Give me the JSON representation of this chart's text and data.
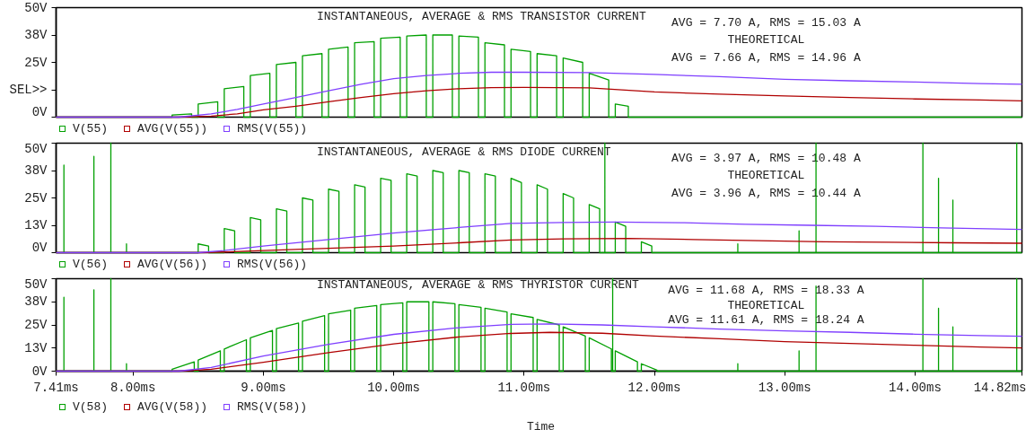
{
  "chart_data": [
    {
      "type": "line",
      "title": "INSTANTANEOUS, AVERAGE & RMS TRANSISTOR CURRENT",
      "annotations": [
        "AVG = 7.70 A, RMS = 15.03 A",
        "THEORETICAL",
        "AVG = 7.66 A, RMS = 14.96 A"
      ],
      "xlim": [
        7.41,
        14.82
      ],
      "ylim": [
        0,
        50
      ],
      "yticks": [
        {
          "value": 0,
          "label": "0V"
        },
        {
          "value": 12.5,
          "label": "SEL>>"
        },
        {
          "value": 25,
          "label": "25V"
        },
        {
          "value": 37.5,
          "label": "38V"
        },
        {
          "value": 50,
          "label": "50V"
        }
      ],
      "tick_labels": "y",
      "legend": "bottom",
      "series": [
        {
          "name": "V(55)",
          "color": "#00a000",
          "x": [
            7.41,
            8.3,
            8.3,
            8.45,
            8.45,
            8.5,
            8.5,
            8.65,
            8.65,
            8.7,
            8.7,
            8.85,
            8.85,
            8.9,
            8.9,
            9.05,
            9.05,
            9.1,
            9.1,
            9.25,
            9.25,
            9.3,
            9.3,
            9.45,
            9.45,
            9.5,
            9.5,
            9.65,
            9.65,
            9.7,
            9.7,
            9.85,
            9.85,
            9.9,
            9.9,
            10.05,
            10.05,
            10.1,
            10.1,
            10.25,
            10.25,
            10.3,
            10.3,
            10.45,
            10.45,
            10.5,
            10.5,
            10.65,
            10.65,
            10.7,
            10.7,
            10.85,
            10.85,
            10.9,
            10.9,
            11.05,
            11.05,
            11.1,
            11.1,
            11.25,
            11.25,
            11.3,
            11.3,
            11.45,
            11.45,
            11.5,
            11.5,
            11.65,
            11.65,
            11.7,
            11.7,
            11.8,
            11.8,
            14.82
          ],
          "values": [
            0,
            0,
            1,
            1.5,
            0,
            0,
            6,
            7,
            0,
            0,
            13,
            14,
            0,
            0,
            19,
            20,
            0,
            0,
            24,
            25,
            0,
            0,
            28,
            29,
            0,
            0,
            31,
            32,
            0,
            0,
            34,
            34.5,
            0,
            0,
            36,
            36.5,
            0,
            0,
            37,
            37.5,
            0,
            0,
            37.5,
            37.5,
            0,
            0,
            37,
            36.5,
            0,
            0,
            34,
            33,
            0,
            0,
            31,
            30,
            0,
            0,
            29,
            28,
            0,
            0,
            27,
            25,
            0,
            0,
            20,
            17,
            0,
            0,
            6,
            5,
            0,
            0
          ]
        },
        {
          "name": "AVG(V(55))",
          "color": "#b00000",
          "x": [
            7.41,
            8.35,
            8.6,
            8.8,
            9.0,
            9.25,
            9.5,
            9.75,
            10.0,
            10.25,
            10.5,
            10.75,
            11.0,
            11.5,
            12.0,
            12.5,
            13.0,
            13.5,
            14.0,
            14.5,
            14.82
          ],
          "values": [
            0,
            0,
            0.5,
            1.5,
            3.3,
            5,
            7,
            9,
            10.7,
            12,
            13,
            13.5,
            13.6,
            13.4,
            11.5,
            10.5,
            9.7,
            9,
            8.3,
            7.8,
            7.4
          ]
        },
        {
          "name": "RMS(V(55))",
          "color": "#7f3fff",
          "x": [
            7.41,
            8.35,
            8.6,
            8.8,
            9.0,
            9.25,
            9.5,
            9.75,
            10.0,
            10.25,
            10.5,
            10.75,
            11.0,
            11.5,
            12.0,
            12.5,
            13.0,
            13.5,
            14.0,
            14.5,
            14.82
          ],
          "values": [
            0,
            0,
            1.5,
            3.5,
            6,
            9,
            12,
            15,
            17.6,
            19,
            20,
            20.5,
            20.5,
            20.3,
            19.5,
            18.5,
            17.3,
            16.6,
            16,
            15.3,
            15
          ]
        }
      ]
    },
    {
      "type": "line",
      "title": "INSTANTANEOUS, AVERAGE & RMS DIODE CURRENT",
      "annotations": [
        "AVG = 3.97 A, RMS = 10.48 A",
        "THEORETICAL",
        "AVG = 3.96 A, RMS = 10.44 A"
      ],
      "xlim": [
        7.41,
        14.82
      ],
      "ylim": [
        0,
        50
      ],
      "yticks": [
        {
          "value": 0,
          "label": "0V"
        },
        {
          "value": 12.5,
          "label": "13V"
        },
        {
          "value": 25,
          "label": "25V"
        },
        {
          "value": 37.5,
          "label": "38V"
        },
        {
          "value": 50,
          "label": "50V"
        }
      ],
      "tick_labels": "y",
      "legend": "bottom",
      "series": [
        {
          "name": "V(56)",
          "color": "#00a000",
          "x": [
            7.41,
            7.47,
            7.47,
            7.47,
            7.7,
            7.7,
            7.7,
            7.83,
            7.83,
            7.83,
            7.95,
            7.95,
            7.95,
            8.5,
            8.5,
            8.58,
            8.58,
            8.7,
            8.7,
            8.78,
            8.78,
            8.9,
            8.9,
            8.98,
            8.98,
            9.1,
            9.1,
            9.18,
            9.18,
            9.3,
            9.3,
            9.38,
            9.38,
            9.5,
            9.5,
            9.58,
            9.58,
            9.7,
            9.7,
            9.78,
            9.78,
            9.9,
            9.9,
            9.98,
            9.98,
            10.1,
            10.1,
            10.18,
            10.18,
            10.3,
            10.3,
            10.38,
            10.38,
            10.5,
            10.5,
            10.58,
            10.58,
            10.7,
            10.7,
            10.78,
            10.78,
            10.9,
            10.9,
            10.98,
            10.98,
            11.1,
            11.1,
            11.18,
            11.18,
            11.3,
            11.3,
            11.38,
            11.38,
            11.5,
            11.5,
            11.58,
            11.58,
            11.62,
            11.62,
            11.62,
            11.7,
            11.7,
            11.78,
            11.78,
            11.9,
            11.9,
            11.98,
            11.98,
            12.64,
            12.64,
            12.64,
            13.11,
            13.11,
            13.11,
            13.24,
            13.24,
            13.24,
            14.06,
            14.06,
            14.06,
            14.18,
            14.18,
            14.18,
            14.29,
            14.29,
            14.29,
            14.78,
            14.78,
            14.78,
            14.82
          ],
          "values": [
            0,
            0,
            40,
            0,
            0,
            44,
            0,
            0,
            50,
            0,
            0,
            4,
            0,
            0,
            4,
            3,
            0,
            0,
            11,
            10,
            0,
            0,
            16,
            15,
            0,
            0,
            20,
            19,
            0,
            0,
            25,
            24,
            0,
            0,
            29,
            28,
            0,
            0,
            31,
            30,
            0,
            0,
            34,
            33,
            0,
            0,
            36,
            35,
            0,
            0,
            37.5,
            36.5,
            0,
            0,
            37.5,
            36.5,
            0,
            0,
            36,
            35,
            0,
            0,
            34,
            32,
            0,
            0,
            31,
            29,
            0,
            0,
            27,
            25,
            0,
            0,
            22,
            20,
            0,
            0,
            50,
            0,
            0,
            14,
            12,
            0,
            0,
            5,
            3,
            0,
            0,
            4,
            0,
            0,
            10,
            0,
            0,
            50,
            0,
            0,
            50,
            0,
            0,
            34,
            0,
            0,
            24,
            0,
            0,
            50,
            0,
            0
          ]
        },
        {
          "name": "AVG(V(56))",
          "color": "#b00000",
          "x": [
            7.41,
            8.5,
            8.7,
            9.0,
            9.5,
            10.0,
            10.5,
            10.9,
            11.3,
            11.8,
            12.3,
            12.8,
            13.3,
            13.8,
            14.3,
            14.82
          ],
          "values": [
            0,
            0,
            0.3,
            1,
            2,
            3,
            4.5,
            5.8,
            6.3,
            6.5,
            6,
            5.5,
            5,
            4.8,
            4.5,
            4.3
          ]
        },
        {
          "name": "RMS(V(56))",
          "color": "#7f3fff",
          "x": [
            7.41,
            8.5,
            8.7,
            9.0,
            9.5,
            10.0,
            10.5,
            10.9,
            11.3,
            11.7,
            12.2,
            12.7,
            13.2,
            13.7,
            14.2,
            14.82
          ],
          "values": [
            0,
            0,
            1,
            3,
            6,
            9,
            11.5,
            13.4,
            13.8,
            14,
            13.7,
            13,
            12.5,
            12,
            11.3,
            10.6
          ]
        }
      ]
    },
    {
      "type": "line",
      "title": "INSTANTANEOUS, AVERAGE & RMS THYRISTOR CURRENT",
      "xlabel": "Time",
      "annotations": [
        "AVG = 11.68 A, RMS = 18.33 A",
        "THEORETICAL",
        "AVG = 11.61 A, RMS = 18.24 A"
      ],
      "xlim": [
        7.41,
        14.82
      ],
      "ylim": [
        0,
        50
      ],
      "xticks": [
        {
          "value": 7.41,
          "label": "7.41ms"
        },
        {
          "value": 8,
          "label": "8.00ms"
        },
        {
          "value": 9,
          "label": "9.00ms"
        },
        {
          "value": 10,
          "label": "10.00ms"
        },
        {
          "value": 11,
          "label": "11.00ms"
        },
        {
          "value": 12,
          "label": "12.00ms"
        },
        {
          "value": 13,
          "label": "13.00ms"
        },
        {
          "value": 14,
          "label": "14.00ms"
        },
        {
          "value": 14.82,
          "label": "14.82ms"
        }
      ],
      "yticks": [
        {
          "value": 0,
          "label": "0V"
        },
        {
          "value": 12.5,
          "label": "13V"
        },
        {
          "value": 25,
          "label": "25V"
        },
        {
          "value": 37.5,
          "label": "38V"
        },
        {
          "value": 50,
          "label": "50V"
        }
      ],
      "legend": "bottom",
      "series": [
        {
          "name": "V(58)",
          "color": "#00a000",
          "x": [
            7.41,
            7.47,
            7.47,
            7.47,
            7.7,
            7.7,
            7.7,
            7.83,
            7.83,
            7.83,
            7.95,
            7.95,
            7.95,
            8.3,
            8.3,
            8.47,
            8.47,
            8.5,
            8.5,
            8.67,
            8.67,
            8.7,
            8.7,
            8.87,
            8.87,
            8.9,
            8.9,
            9.07,
            9.07,
            9.1,
            9.1,
            9.27,
            9.27,
            9.3,
            9.3,
            9.47,
            9.47,
            9.5,
            9.5,
            9.67,
            9.67,
            9.7,
            9.7,
            9.87,
            9.87,
            9.9,
            9.9,
            10.07,
            10.07,
            10.1,
            10.1,
            10.27,
            10.27,
            10.3,
            10.3,
            10.47,
            10.47,
            10.5,
            10.5,
            10.67,
            10.67,
            10.7,
            10.7,
            10.87,
            10.87,
            10.9,
            10.9,
            11.07,
            11.07,
            11.1,
            11.1,
            11.27,
            11.27,
            11.3,
            11.3,
            11.47,
            11.47,
            11.5,
            11.5,
            11.67,
            11.67,
            11.68,
            11.68,
            11.68,
            11.7,
            11.7,
            11.87,
            11.87,
            11.9,
            11.9,
            12.02,
            12.02,
            12.64,
            12.64,
            12.64,
            13.11,
            13.11,
            13.11,
            13.24,
            13.24,
            13.24,
            14.06,
            14.06,
            14.06,
            14.18,
            14.18,
            14.18,
            14.29,
            14.29,
            14.29,
            14.78,
            14.78,
            14.78,
            14.82
          ],
          "values": [
            0,
            0,
            40,
            0,
            0,
            44,
            0,
            0,
            50,
            0,
            0,
            4,
            0,
            0,
            1,
            5,
            0,
            0,
            6,
            11,
            0,
            0,
            12,
            17,
            0,
            0,
            18,
            22,
            0,
            0,
            23,
            26,
            0,
            0,
            27,
            30,
            0,
            0,
            31,
            33,
            0,
            0,
            34,
            35.5,
            0,
            0,
            36,
            37,
            0,
            0,
            37.5,
            37.5,
            0,
            0,
            37.5,
            36.5,
            0,
            0,
            36,
            34.5,
            0,
            0,
            34,
            32,
            0,
            0,
            31,
            29,
            0,
            0,
            28,
            25,
            0,
            0,
            24,
            19,
            0,
            0,
            18,
            12,
            0,
            0,
            50,
            0,
            0,
            11,
            5,
            0,
            0,
            4,
            0.5,
            0,
            0,
            4,
            0,
            0,
            11,
            0,
            0,
            46,
            0,
            0,
            50,
            0,
            0,
            34,
            0,
            0,
            24,
            0,
            0,
            50,
            0,
            0
          ]
        },
        {
          "name": "AVG(V(58))",
          "color": "#b00000",
          "x": [
            7.41,
            8.35,
            8.6,
            9.0,
            9.5,
            10.0,
            10.5,
            10.9,
            11.2,
            11.6,
            12.0,
            12.5,
            13.0,
            13.5,
            14.0,
            14.5,
            14.82
          ],
          "values": [
            0,
            0,
            1,
            4.8,
            10,
            14.7,
            18.5,
            20.4,
            21,
            20.5,
            19,
            17.5,
            16,
            15,
            14,
            13,
            12.6
          ]
        },
        {
          "name": "RMS(V(58))",
          "color": "#7f3fff",
          "x": [
            7.41,
            8.35,
            8.6,
            9.0,
            9.5,
            10.0,
            10.5,
            10.9,
            11.2,
            11.6,
            12.0,
            12.5,
            13.0,
            13.5,
            14.0,
            14.5,
            14.82
          ],
          "values": [
            0,
            0,
            2,
            8.2,
            14.5,
            19.9,
            23.5,
            25.3,
            25.5,
            25,
            24,
            22.8,
            21.8,
            21,
            20,
            19.2,
            18.9
          ]
        }
      ]
    }
  ]
}
